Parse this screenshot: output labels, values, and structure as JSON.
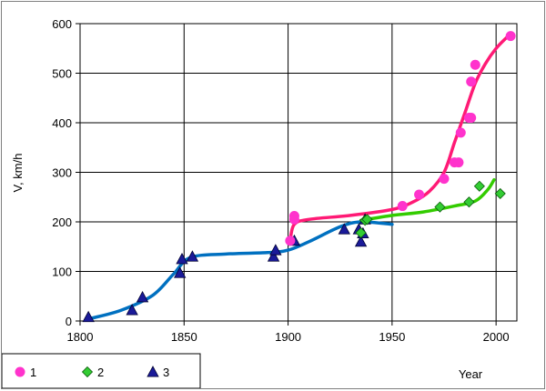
{
  "chart_data": {
    "type": "line",
    "title": "",
    "xlabel": "Year",
    "ylabel": "V, km/h",
    "xlim": [
      1800,
      2010
    ],
    "ylim": [
      0,
      600
    ],
    "x_ticks": [
      1800,
      1850,
      1900,
      1950,
      2000
    ],
    "y_ticks": [
      0,
      100,
      200,
      300,
      400,
      500,
      600
    ],
    "grid": true,
    "legend_position": "bottom-left",
    "series": [
      {
        "name": "1",
        "marker": "circle",
        "color": "#ff33cc",
        "line_color": "#ff1a75",
        "points": [
          [
            1901,
            162
          ],
          [
            1903,
            212
          ],
          [
            1903,
            205
          ],
          [
            1955,
            232
          ],
          [
            1963,
            255
          ],
          [
            1975,
            287
          ],
          [
            1980,
            320
          ],
          [
            1982,
            320
          ],
          [
            1983,
            380
          ],
          [
            1987,
            410
          ],
          [
            1988,
            410
          ],
          [
            1988,
            483
          ],
          [
            1990,
            517
          ],
          [
            2007,
            575
          ]
        ],
        "curve": [
          [
            1901,
            163
          ],
          [
            1903,
            195
          ],
          [
            1910,
            205
          ],
          [
            1930,
            213
          ],
          [
            1950,
            225
          ],
          [
            1960,
            240
          ],
          [
            1968,
            262
          ],
          [
            1975,
            300
          ],
          [
            1980,
            360
          ],
          [
            1985,
            420
          ],
          [
            1990,
            480
          ],
          [
            1995,
            520
          ],
          [
            2000,
            550
          ],
          [
            2005,
            572
          ]
        ]
      },
      {
        "name": "2",
        "marker": "diamond",
        "color": "#33cc33",
        "line_color": "#33cc00",
        "points": [
          [
            1935,
            178
          ],
          [
            1937,
            203
          ],
          [
            1938,
            205
          ],
          [
            1973,
            230
          ],
          [
            1987,
            240
          ],
          [
            1992,
            272
          ],
          [
            2002,
            257
          ]
        ],
        "curve": [
          [
            1935,
            203
          ],
          [
            1950,
            213
          ],
          [
            1965,
            220
          ],
          [
            1980,
            232
          ],
          [
            1990,
            242
          ],
          [
            1996,
            265
          ],
          [
            1999,
            285
          ]
        ]
      },
      {
        "name": "3",
        "marker": "triangle",
        "color": "#1a1a99",
        "line_color": "#0070c0",
        "points": [
          [
            1804,
            8
          ],
          [
            1825,
            22
          ],
          [
            1830,
            48
          ],
          [
            1848,
            97
          ],
          [
            1849,
            125
          ],
          [
            1854,
            130
          ],
          [
            1893,
            130
          ],
          [
            1894,
            143
          ],
          [
            1903,
            162
          ],
          [
            1927,
            185
          ],
          [
            1934,
            185
          ],
          [
            1935,
            160
          ],
          [
            1936,
            177
          ],
          [
            1937,
            205
          ]
        ],
        "curve": [
          [
            1805,
            5
          ],
          [
            1820,
            22
          ],
          [
            1835,
            52
          ],
          [
            1845,
            95
          ],
          [
            1853,
            128
          ],
          [
            1870,
            135
          ],
          [
            1890,
            138
          ],
          [
            1900,
            143
          ],
          [
            1910,
            160
          ],
          [
            1925,
            190
          ],
          [
            1935,
            200
          ],
          [
            1950,
            195
          ]
        ]
      }
    ]
  }
}
